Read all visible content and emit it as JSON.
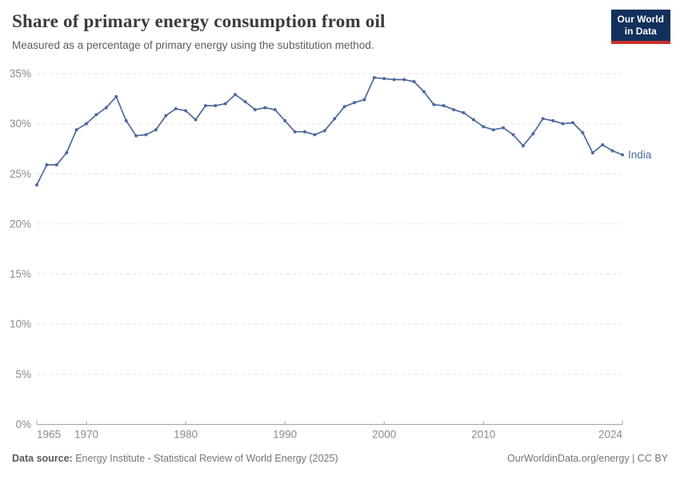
{
  "header": {
    "title": "Share of primary energy consumption from oil",
    "subtitle": "Measured as a percentage of primary energy using the substitution method.",
    "logo": {
      "line1": "Our World",
      "line2": "in Data"
    }
  },
  "footer": {
    "source_label": "Data source:",
    "source_text": "Energy Institute - Statistical Review of World Energy (2025)",
    "credit": "OurWorldinData.org/energy | CC BY"
  },
  "colors": {
    "line": "#4c6a9c",
    "series_label": "#4c6a9c",
    "grid": "#e1e1e1",
    "axis": "#a3a3a3",
    "tick_label": "#8a8a8a",
    "logo_bg": "#12305b",
    "logo_red": "#c5312b"
  },
  "chart_data": {
    "type": "line",
    "title": "Share of primary energy consumption from oil",
    "subtitle": "Measured as a percentage of primary energy using the substitution method.",
    "unit": "%",
    "series_label": "India",
    "grid": "horizontal-dashed",
    "legend_position": "end-of-line",
    "ylim": [
      0,
      35
    ],
    "yticks": [
      0,
      5,
      10,
      15,
      20,
      25,
      30,
      35
    ],
    "xticks": [
      1965,
      1970,
      1980,
      1990,
      2000,
      2010,
      2024
    ],
    "x": [
      1965,
      1966,
      1967,
      1968,
      1969,
      1970,
      1971,
      1972,
      1973,
      1974,
      1975,
      1976,
      1977,
      1978,
      1979,
      1980,
      1981,
      1982,
      1983,
      1984,
      1985,
      1986,
      1987,
      1988,
      1989,
      1990,
      1991,
      1992,
      1993,
      1994,
      1995,
      1996,
      1997,
      1998,
      1999,
      2000,
      2001,
      2002,
      2003,
      2004,
      2005,
      2006,
      2007,
      2008,
      2009,
      2010,
      2011,
      2012,
      2013,
      2014,
      2015,
      2016,
      2017,
      2018,
      2019,
      2020,
      2021,
      2022,
      2023,
      2024
    ],
    "values": [
      23.9,
      25.9,
      25.9,
      27.1,
      29.4,
      30.0,
      30.9,
      31.6,
      32.7,
      30.3,
      28.8,
      28.9,
      29.4,
      30.8,
      31.5,
      31.3,
      30.4,
      31.8,
      31.8,
      32.0,
      32.9,
      32.2,
      31.4,
      31.6,
      31.4,
      30.3,
      29.2,
      29.2,
      28.9,
      29.3,
      30.5,
      31.7,
      32.1,
      32.4,
      34.6,
      34.5,
      34.4,
      34.4,
      34.2,
      33.2,
      31.9,
      31.8,
      31.4,
      31.1,
      30.4,
      29.7,
      29.4,
      29.6,
      28.9,
      27.8,
      29.0,
      30.5,
      30.3,
      30.0,
      30.1,
      29.1,
      27.1,
      27.9,
      27.3,
      26.9
    ]
  }
}
